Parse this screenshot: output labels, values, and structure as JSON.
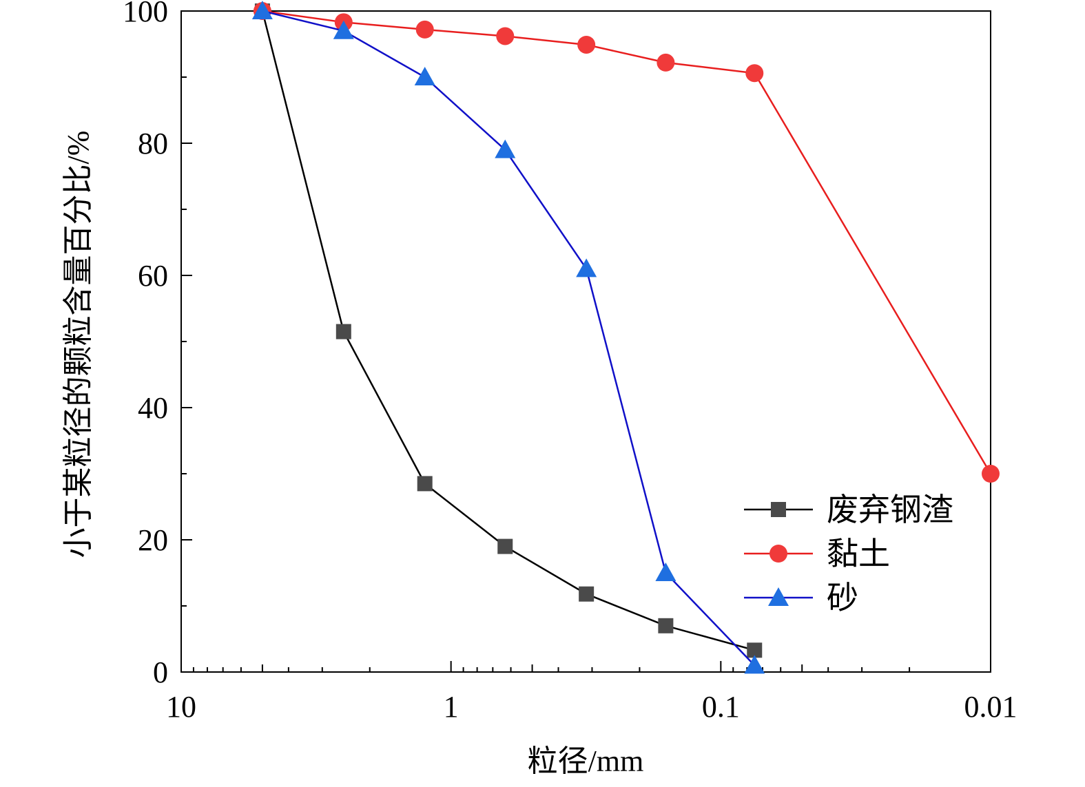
{
  "chart_data": {
    "type": "line",
    "title": "",
    "xlabel": "粒径/mm",
    "ylabel": "小于某粒径的颗粒含量百分比/%",
    "x_scale": "log",
    "x_reversed": true,
    "xlim": [
      10,
      0.01
    ],
    "ylim": [
      0,
      100
    ],
    "x_ticks": [
      10,
      1,
      0.1,
      0.01
    ],
    "x_tick_labels": [
      "10",
      "1",
      "0.1",
      "0.01"
    ],
    "y_ticks": [
      0,
      20,
      40,
      60,
      80,
      100
    ],
    "y_tick_labels": [
      "0",
      "20",
      "40",
      "60",
      "80",
      "100"
    ],
    "grid": false,
    "legend_position": "bottom-right",
    "x": [
      5,
      2.5,
      1.25,
      0.63,
      0.315,
      0.16,
      0.075,
      0.01
    ],
    "series": [
      {
        "name": "废弃钢渣",
        "color": "#000000",
        "marker": "square",
        "marker_color": "#4a4a4a",
        "x": [
          5,
          2.5,
          1.25,
          0.63,
          0.315,
          0.16,
          0.075
        ],
        "values": [
          100,
          51.5,
          28.5,
          19,
          11.8,
          7,
          3.3
        ]
      },
      {
        "name": "黏土",
        "color": "#e81e1e",
        "marker": "circle",
        "marker_color": "#f03a3a",
        "x": [
          5,
          2.5,
          1.25,
          0.63,
          0.315,
          0.16,
          0.075,
          0.01
        ],
        "values": [
          100,
          98.3,
          97.2,
          96.2,
          94.9,
          92.2,
          90.6,
          30
        ]
      },
      {
        "name": "砂",
        "color": "#1010c8",
        "marker": "triangle",
        "marker_color": "#1f6fe0",
        "x": [
          5,
          2.5,
          1.25,
          0.63,
          0.315,
          0.16,
          0.075
        ],
        "values": [
          100,
          97,
          90,
          79,
          61,
          15,
          1
        ]
      }
    ]
  }
}
